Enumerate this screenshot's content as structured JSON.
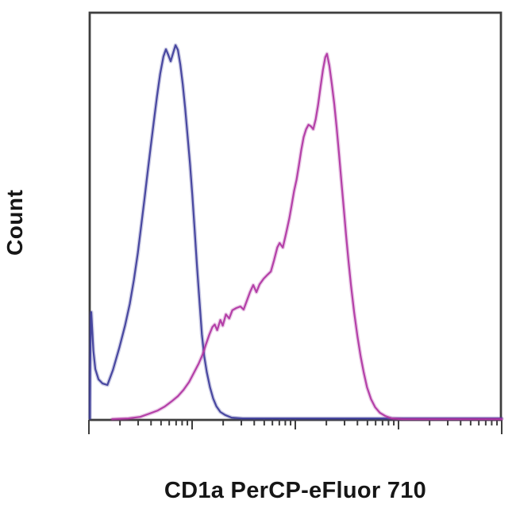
{
  "figure": {
    "background": "#ffffff",
    "frame_color": "#3e3e3e",
    "text_color": "#161616",
    "ylabel": "Count",
    "xlabel": "CD1a PerCP-eFluor 710"
  },
  "chart_data": {
    "type": "line",
    "subtype": "flow-cytometry-histogram-overlay",
    "title": "",
    "xlabel": "CD1a PerCP-eFluor 710",
    "ylabel": "Count",
    "x_scale": "log10",
    "x_decades": 4,
    "x_tick_labels": [],
    "y_tick_labels": [],
    "ylim": [
      0,
      100
    ],
    "grid": false,
    "legend_position": "none",
    "frame": true,
    "series": [
      {
        "name": "blue-histogram",
        "color": "#403f9c",
        "peak": {
          "x_decades": 0.84,
          "y_relative": 99.6
        },
        "points": [
          [
            0.01,
            0.2
          ],
          [
            0.012,
            12.3
          ],
          [
            0.016,
            20.7
          ],
          [
            0.019,
            27.5
          ],
          [
            0.023,
            28.5
          ],
          [
            0.031,
            24.5
          ],
          [
            0.043,
            18.2
          ],
          [
            0.062,
            13.3
          ],
          [
            0.093,
            10.6
          ],
          [
            0.132,
            9.5
          ],
          [
            0.179,
            9.1
          ],
          [
            0.233,
            13.1
          ],
          [
            0.295,
            19.0
          ],
          [
            0.35,
            24.9
          ],
          [
            0.396,
            30.7
          ],
          [
            0.435,
            37.0
          ],
          [
            0.474,
            44.2
          ],
          [
            0.505,
            51.2
          ],
          [
            0.536,
            58.1
          ],
          [
            0.567,
            65.3
          ],
          [
            0.598,
            72.3
          ],
          [
            0.629,
            79.3
          ],
          [
            0.66,
            86.0
          ],
          [
            0.691,
            92.0
          ],
          [
            0.722,
            96.6
          ],
          [
            0.746,
            98.5
          ],
          [
            0.769,
            97.0
          ],
          [
            0.792,
            95.3
          ],
          [
            0.816,
            97.5
          ],
          [
            0.839,
            99.6
          ],
          [
            0.862,
            98.3
          ],
          [
            0.885,
            94.5
          ],
          [
            0.909,
            89.2
          ],
          [
            0.932,
            82.9
          ],
          [
            0.955,
            75.9
          ],
          [
            0.979,
            68.1
          ],
          [
            1.002,
            59.6
          ],
          [
            1.025,
            50.1
          ],
          [
            1.048,
            40.6
          ],
          [
            1.072,
            31.1
          ],
          [
            1.095,
            22.6
          ],
          [
            1.118,
            16.7
          ],
          [
            1.142,
            12.5
          ],
          [
            1.173,
            8.5
          ],
          [
            1.204,
            5.5
          ],
          [
            1.235,
            3.4
          ],
          [
            1.274,
            1.9
          ],
          [
            1.32,
            1.1
          ],
          [
            1.382,
            0.4
          ],
          [
            1.491,
            0.2
          ],
          [
            4.0,
            0.2
          ]
        ]
      },
      {
        "name": "magenta-histogram",
        "color": "#b138a4",
        "peak": {
          "x_decades": 2.31,
          "y_relative": 97.3
        },
        "points": [
          [
            0.225,
            0.0
          ],
          [
            0.381,
            0.2
          ],
          [
            0.497,
            0.6
          ],
          [
            0.59,
            1.5
          ],
          [
            0.668,
            2.3
          ],
          [
            0.738,
            3.4
          ],
          [
            0.8,
            4.7
          ],
          [
            0.862,
            6.1
          ],
          [
            0.917,
            7.8
          ],
          [
            0.971,
            9.9
          ],
          [
            1.017,
            12.3
          ],
          [
            1.064,
            14.8
          ],
          [
            1.103,
            17.3
          ],
          [
            1.134,
            19.9
          ],
          [
            1.165,
            22.4
          ],
          [
            1.196,
            24.5
          ],
          [
            1.219,
            25.2
          ],
          [
            1.243,
            23.7
          ],
          [
            1.274,
            26.4
          ],
          [
            1.297,
            24.9
          ],
          [
            1.328,
            27.9
          ],
          [
            1.359,
            26.8
          ],
          [
            1.39,
            29.0
          ],
          [
            1.429,
            29.6
          ],
          [
            1.468,
            30.0
          ],
          [
            1.499,
            29.2
          ],
          [
            1.53,
            31.5
          ],
          [
            1.561,
            33.8
          ],
          [
            1.592,
            35.7
          ],
          [
            1.623,
            33.8
          ],
          [
            1.654,
            35.9
          ],
          [
            1.693,
            37.4
          ],
          [
            1.732,
            38.5
          ],
          [
            1.763,
            39.3
          ],
          [
            1.794,
            42.3
          ],
          [
            1.825,
            45.7
          ],
          [
            1.848,
            46.9
          ],
          [
            1.879,
            45.7
          ],
          [
            1.911,
            49.5
          ],
          [
            1.942,
            53.5
          ],
          [
            1.965,
            57.1
          ],
          [
            1.988,
            60.7
          ],
          [
            2.012,
            63.8
          ],
          [
            2.035,
            67.7
          ],
          [
            2.058,
            71.7
          ],
          [
            2.081,
            75.1
          ],
          [
            2.105,
            77.2
          ],
          [
            2.128,
            78.4
          ],
          [
            2.151,
            78.0
          ],
          [
            2.174,
            77.2
          ],
          [
            2.198,
            79.9
          ],
          [
            2.221,
            83.7
          ],
          [
            2.244,
            88.4
          ],
          [
            2.268,
            93.0
          ],
          [
            2.291,
            96.4
          ],
          [
            2.307,
            97.3
          ],
          [
            2.33,
            94.1
          ],
          [
            2.353,
            89.4
          ],
          [
            2.377,
            84.1
          ],
          [
            2.4,
            77.8
          ],
          [
            2.423,
            70.8
          ],
          [
            2.446,
            63.4
          ],
          [
            2.47,
            56.0
          ],
          [
            2.493,
            48.6
          ],
          [
            2.516,
            41.9
          ],
          [
            2.54,
            35.5
          ],
          [
            2.571,
            28.3
          ],
          [
            2.602,
            22.0
          ],
          [
            2.633,
            16.7
          ],
          [
            2.664,
            12.3
          ],
          [
            2.695,
            8.5
          ],
          [
            2.734,
            5.3
          ],
          [
            2.773,
            3.2
          ],
          [
            2.819,
            1.7
          ],
          [
            2.874,
            0.8
          ],
          [
            2.936,
            0.2
          ],
          [
            3.045,
            0.0
          ],
          [
            4.0,
            0.0
          ]
        ]
      }
    ]
  }
}
